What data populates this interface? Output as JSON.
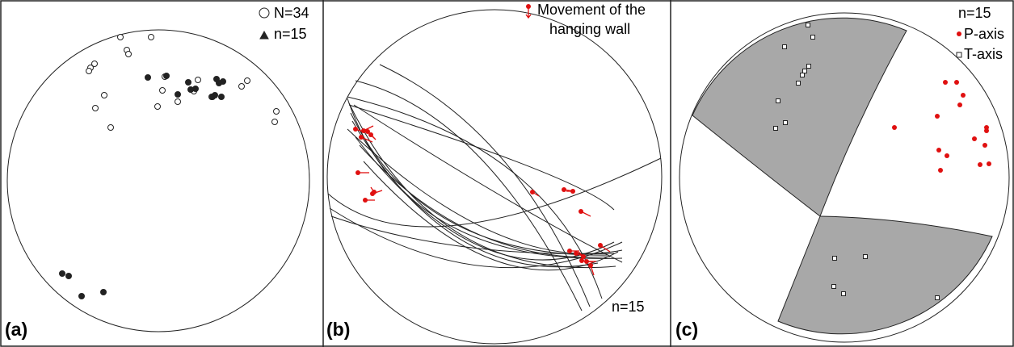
{
  "panels": [
    {
      "label": "(a)",
      "legend": [
        "N=34",
        "n=15"
      ]
    },
    {
      "label": "(b)",
      "legend": [
        "Movement of the",
        "hanging wall"
      ],
      "note": "n=15"
    },
    {
      "label": "(c)",
      "legend": [
        "n=15",
        "P-axis",
        "T-axis"
      ]
    }
  ]
}
